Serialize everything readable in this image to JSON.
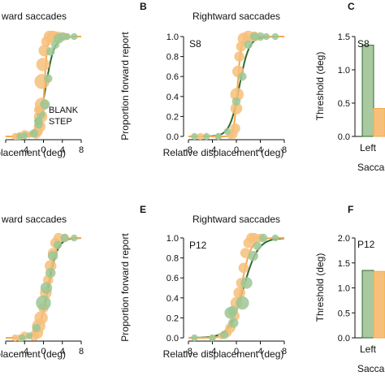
{
  "colors": {
    "blank": "#f5a84a",
    "step": "#2f6b2f",
    "blank_fill": "#f7c07a",
    "step_fill": "#a9c9a0",
    "step_marker": "#9cc794"
  },
  "chart_data": [
    {
      "id": "A",
      "panel_label": "",
      "type": "scatter",
      "title": "ward saccades",
      "subject": "",
      "xlabel": " displacement (deg)",
      "ylabel": "",
      "xlim": [
        -8,
        8
      ],
      "ylim": [
        0,
        1
      ],
      "x_ticks": [
        -8,
        -4,
        0,
        4,
        8
      ],
      "x_tick_labels": [
        "",
        "-4",
        "0",
        "4",
        "8"
      ],
      "y_ticks": [],
      "y_tick_labels": [],
      "legend": {
        "placement": "right",
        "entries": [
          "BLANK",
          "STEP"
        ]
      },
      "fit_pse": {
        "blank": 0.2,
        "step": 0.5
      },
      "fit_slope": {
        "blank": 0.3,
        "step": 0.9
      },
      "series": [
        {
          "name": "BLANK",
          "points": [
            [
              -6,
              0
            ],
            [
              -5.5,
              0
            ],
            [
              -5,
              0.01
            ],
            [
              -4,
              0.02
            ],
            [
              -3,
              0.02
            ],
            [
              -1.5,
              0.02
            ],
            [
              -1.2,
              0.05
            ],
            [
              -0.8,
              0.1
            ],
            [
              -0.6,
              0.2
            ],
            [
              -0.4,
              0.32
            ],
            [
              -0.3,
              0.55
            ],
            [
              -0.1,
              0.72
            ],
            [
              0.2,
              0.86
            ],
            [
              0.6,
              0.95
            ],
            [
              1.3,
              1
            ],
            [
              2,
              1
            ],
            [
              3,
              1
            ],
            [
              4.2,
              1
            ],
            [
              5,
              1
            ]
          ],
          "sizes": [
            4,
            4,
            4,
            5,
            4,
            5,
            6,
            7,
            8,
            8,
            9,
            8,
            7,
            6,
            7,
            7,
            6,
            5,
            4
          ]
        },
        {
          "name": "STEP",
          "points": [
            [
              -5,
              0
            ],
            [
              -4,
              0.01
            ],
            [
              -2,
              0.03
            ],
            [
              -1,
              0.12
            ],
            [
              -0.5,
              0.22
            ],
            [
              0.3,
              0.32
            ],
            [
              1,
              0.58
            ],
            [
              1.5,
              0.85
            ],
            [
              2.5,
              0.92
            ],
            [
              3.2,
              0.98
            ],
            [
              4,
              1
            ],
            [
              5,
              1
            ],
            [
              6.5,
              1
            ]
          ],
          "sizes": [
            4,
            4,
            5,
            5,
            5,
            6,
            5,
            5,
            5,
            6,
            5,
            4,
            4
          ]
        }
      ]
    },
    {
      "id": "B",
      "panel_label": "B",
      "type": "scatter",
      "title": "Rightward saccades",
      "subject": "S8",
      "xlabel": "Relative displacement (deg)",
      "ylabel": "Proportion forward report",
      "xlim": [
        -8,
        8
      ],
      "ylim": [
        0,
        1
      ],
      "x_ticks": [
        -8,
        -4,
        0,
        4,
        8
      ],
      "x_tick_labels": [
        "-8",
        "-4",
        "0",
        "4",
        "8"
      ],
      "y_ticks": [
        0,
        0.2,
        0.4,
        0.6,
        0.8,
        1.0
      ],
      "y_tick_labels": [
        "0.0",
        "0.2",
        "0.4",
        "0.6",
        "0.8",
        "1.0"
      ],
      "fit_pse": {
        "blank": 0.2,
        "step": 0.5
      },
      "fit_slope": {
        "blank": 0.3,
        "step": 0.8
      },
      "series": [
        {
          "name": "BLANK",
          "points": [
            [
              -6,
              0
            ],
            [
              -3,
              0
            ],
            [
              -1,
              0.01
            ],
            [
              -0.5,
              0.02
            ],
            [
              -0.2,
              0.08
            ],
            [
              0,
              0.28
            ],
            [
              0.1,
              0.42
            ],
            [
              0.3,
              0.65
            ],
            [
              0.5,
              0.8
            ],
            [
              0.8,
              0.9
            ],
            [
              1.2,
              0.98
            ],
            [
              2,
              1
            ],
            [
              3,
              1
            ]
          ],
          "sizes": [
            4,
            4,
            4,
            5,
            6,
            7,
            8,
            7,
            6,
            6,
            7,
            7,
            6
          ]
        },
        {
          "name": "STEP",
          "points": [
            [
              -7,
              0
            ],
            [
              -5,
              0
            ],
            [
              -3,
              0
            ],
            [
              -1.5,
              0.05
            ],
            [
              0,
              0.35
            ],
            [
              1,
              0.6
            ],
            [
              2,
              0.92
            ],
            [
              3,
              1
            ],
            [
              4,
              1
            ],
            [
              5,
              1
            ],
            [
              6.5,
              1
            ]
          ],
          "sizes": [
            4,
            4,
            4,
            4,
            5,
            5,
            5,
            5,
            5,
            4,
            4
          ]
        }
      ]
    },
    {
      "id": "C",
      "panel_label": "C",
      "type": "bar",
      "title": "",
      "subject": "S8",
      "xlabel": "Saccade",
      "ylabel": "Threshold (deg)",
      "ylim": [
        0,
        1.5
      ],
      "y_ticks": [
        0,
        0.5,
        1.0,
        1.5
      ],
      "y_tick_labels": [
        "0.0",
        "0.5",
        "1.0",
        "1.5"
      ],
      "categories": [
        "Left"
      ],
      "series": [
        {
          "name": "STEP",
          "values": [
            1.37
          ]
        },
        {
          "name": "BLANK",
          "values": [
            0.42
          ]
        }
      ]
    },
    {
      "id": "D",
      "panel_label": "",
      "type": "scatter",
      "title": "ward saccades",
      "subject": "",
      "xlabel": " displacement (deg)",
      "ylabel": "",
      "xlim": [
        -8,
        8
      ],
      "ylim": [
        0,
        1
      ],
      "x_ticks": [
        -8,
        -4,
        0,
        4,
        8
      ],
      "x_tick_labels": [
        "",
        "-4",
        "0",
        "4",
        "8"
      ],
      "y_ticks": [],
      "y_tick_labels": [],
      "fit_pse": {
        "blank": 0.8,
        "step": 1.0
      },
      "fit_slope": {
        "blank": 0.9,
        "step": 1.0
      },
      "series": [
        {
          "name": "BLANK",
          "points": [
            [
              -6,
              0
            ],
            [
              -5,
              0
            ],
            [
              -4,
              0.02
            ],
            [
              -2,
              0.02
            ],
            [
              -1.3,
              0.05
            ],
            [
              -1,
              0.12
            ],
            [
              -0.5,
              0.2
            ],
            [
              0,
              0.3
            ],
            [
              0.5,
              0.45
            ],
            [
              1,
              0.58
            ],
            [
              1.5,
              0.72
            ],
            [
              2,
              0.85
            ],
            [
              2.5,
              0.95
            ],
            [
              3.2,
              1
            ],
            [
              4.5,
              1
            ]
          ],
          "sizes": [
            4,
            4,
            5,
            6,
            7,
            8,
            8,
            6,
            7,
            6,
            7,
            6,
            6,
            6,
            5
          ]
        },
        {
          "name": "STEP",
          "points": [
            [
              -4.5,
              0
            ],
            [
              -3,
              0.02
            ],
            [
              -1.5,
              0.1
            ],
            [
              0,
              0.35
            ],
            [
              0.6,
              0.5
            ],
            [
              1.5,
              0.65
            ],
            [
              2,
              0.82
            ],
            [
              3,
              0.93
            ],
            [
              4.5,
              1
            ],
            [
              6.5,
              1
            ]
          ],
          "sizes": [
            4,
            4,
            5,
            9,
            7,
            6,
            6,
            5,
            5,
            4
          ]
        }
      ]
    },
    {
      "id": "E",
      "panel_label": "E",
      "type": "scatter",
      "title": "Rightward saccades",
      "subject": "P12",
      "xlabel": "Relative displacement (deg)",
      "ylabel": "Proportion forward report",
      "xlim": [
        -8,
        8
      ],
      "ylim": [
        0,
        1
      ],
      "x_ticks": [
        -8,
        -4,
        0,
        4,
        8
      ],
      "x_tick_labels": [
        "-8",
        "-4",
        "0",
        "4",
        "8"
      ],
      "y_ticks": [
        0,
        0.2,
        0.4,
        0.6,
        0.8,
        1.0
      ],
      "y_tick_labels": [
        "0.0",
        "0.2",
        "0.4",
        "0.6",
        "0.8",
        "1.0"
      ],
      "fit_pse": {
        "blank": 0.8,
        "step": 1.2
      },
      "fit_slope": {
        "blank": 0.8,
        "step": 1.2
      },
      "series": [
        {
          "name": "BLANK",
          "points": [
            [
              -4,
              0
            ],
            [
              -2.5,
              0.02
            ],
            [
              -1.5,
              0.05
            ],
            [
              -1,
              0.1
            ],
            [
              -0.3,
              0.22
            ],
            [
              0,
              0.35
            ],
            [
              0.5,
              0.45
            ],
            [
              0.8,
              0.55
            ],
            [
              1.2,
              0.7
            ],
            [
              1.5,
              0.85
            ],
            [
              2,
              0.95
            ],
            [
              2.5,
              1
            ],
            [
              3,
              1
            ],
            [
              4,
              1
            ]
          ],
          "sizes": [
            4,
            4,
            5,
            6,
            6,
            7,
            7,
            6,
            6,
            6,
            6,
            6,
            6,
            5
          ]
        },
        {
          "name": "STEP",
          "points": [
            [
              -7,
              0
            ],
            [
              -4,
              0
            ],
            [
              -2,
              0.03
            ],
            [
              -0.5,
              0.15
            ],
            [
              -1,
              0.25
            ],
            [
              -0.6,
              0.27
            ],
            [
              1,
              0.35
            ],
            [
              1.7,
              0.55
            ],
            [
              2.8,
              0.82
            ],
            [
              3.5,
              0.92
            ],
            [
              4.5,
              1
            ],
            [
              6.5,
              1
            ]
          ],
          "sizes": [
            4,
            4,
            5,
            6,
            7,
            6,
            8,
            7,
            6,
            5,
            5,
            4
          ]
        }
      ]
    },
    {
      "id": "F",
      "panel_label": "F",
      "type": "bar",
      "title": "",
      "subject": "P12",
      "xlabel": "Saccade",
      "ylabel": "Threshold (deg)",
      "ylim": [
        0,
        2.0
      ],
      "y_ticks": [
        0,
        0.5,
        1.0,
        1.5,
        2.0
      ],
      "y_tick_labels": [
        "0.0",
        "0.5",
        "1.0",
        "1.5",
        "2.0"
      ],
      "categories": [
        "Left"
      ],
      "series": [
        {
          "name": "STEP",
          "values": [
            1.35
          ]
        },
        {
          "name": "BLANK",
          "values": [
            1.33
          ]
        }
      ]
    }
  ]
}
